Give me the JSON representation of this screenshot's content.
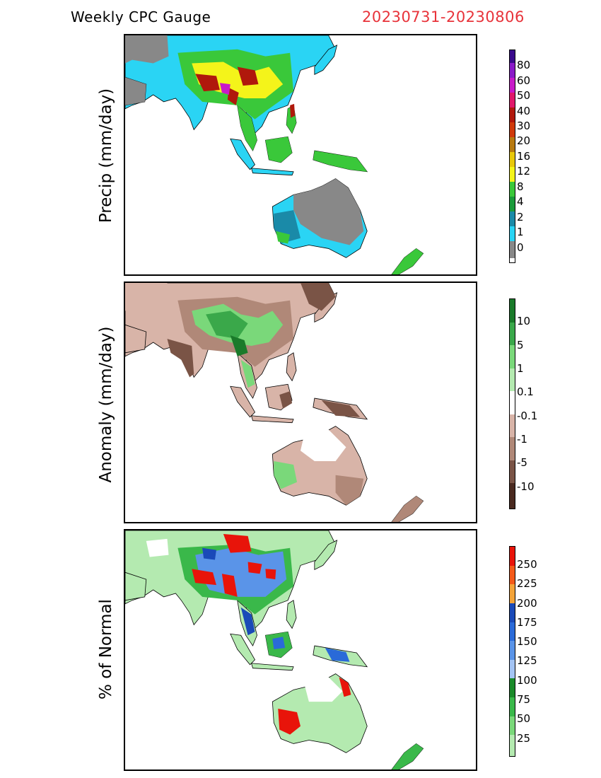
{
  "header": {
    "title": "Weekly CPC Gauge",
    "date_range": "20230731-20230806"
  },
  "panels": [
    {
      "id": "precip",
      "ylabel": "Precip (mm/day)",
      "legend_ticks": [
        "80",
        "60",
        "50",
        "40",
        "30",
        "20",
        "16",
        "12",
        "8",
        "4",
        "2",
        "1",
        "0"
      ],
      "legend_colors": [
        "#3a0a8c",
        "#8a1ac8",
        "#c81ac8",
        "#e0186a",
        "#b0180c",
        "#d03a0a",
        "#b87a10",
        "#e8c80a",
        "#f4f41a",
        "#3ac83a",
        "#1a9a3a",
        "#1a8aa8",
        "#2ad4f4",
        "#888888"
      ]
    },
    {
      "id": "anomaly",
      "ylabel": "Anomaly (mm/day)",
      "legend_ticks": [
        "10",
        "5",
        "1",
        "0.1",
        "-0.1",
        "-1",
        "-5",
        "-10"
      ],
      "legend_colors": [
        "#1a7a2a",
        "#3aa84a",
        "#7ad87a",
        "#b4eab0",
        "#ffffff",
        "#d8b4a8",
        "#b08878",
        "#7a5446",
        "#4a2a20"
      ]
    },
    {
      "id": "pct-normal",
      "ylabel": "% of Normal",
      "legend_ticks": [
        "250",
        "225",
        "200",
        "175",
        "150",
        "125",
        "100",
        "75",
        "50",
        "25"
      ],
      "legend_colors": [
        "#e8140a",
        "#f45a1a",
        "#f4a43a",
        "#1a4ab8",
        "#2a6ad8",
        "#5a94e8",
        "#a4c4f4",
        "#1a8a2a",
        "#3ab84a",
        "#7ad87a",
        "#b4eab0"
      ]
    }
  ]
}
